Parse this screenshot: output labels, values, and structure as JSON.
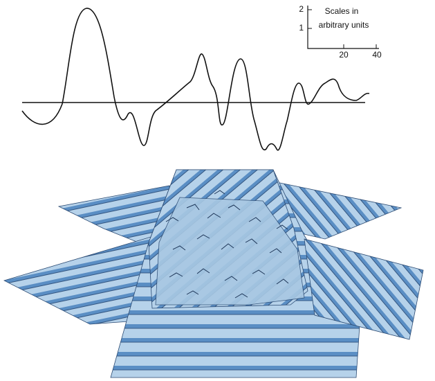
{
  "scale": {
    "title_lines": [
      "Scales in",
      "arbitrary units"
    ],
    "y_labels": [
      "2",
      "1"
    ],
    "x_labels": [
      "20",
      "40"
    ]
  }
}
